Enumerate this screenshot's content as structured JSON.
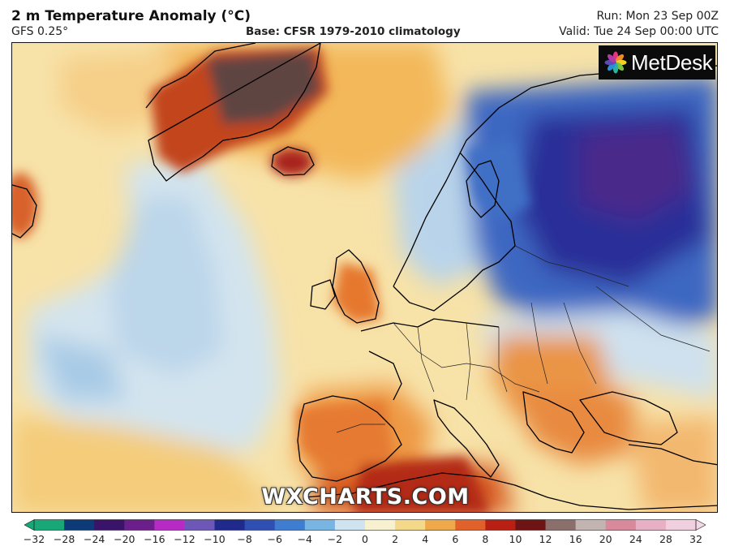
{
  "header": {
    "title": "2 m Temperature Anomaly (°C)",
    "subtitle": "GFS 0.25°",
    "base": "Base: CFSR 1979-2010 climatology",
    "run": "Run: Mon 23 Sep 00Z",
    "valid": "Valid: Tue 24 Sep 00:00 UTC"
  },
  "logo": {
    "text": "MetDesk",
    "icon": "flower-logo-icon"
  },
  "watermark": "WXCHARTS.COM",
  "colorbar": {
    "ticks": [
      "−32",
      "−28",
      "−24",
      "−20",
      "−16",
      "−12",
      "−10",
      "−8",
      "−6",
      "−4",
      "−2",
      "0",
      "2",
      "4",
      "6",
      "8",
      "10",
      "12",
      "16",
      "20",
      "24",
      "28",
      "32"
    ],
    "colors": [
      "#18a878",
      "#0d3a78",
      "#3a1468",
      "#6a1f8a",
      "#b52bc4",
      "#6d58b8",
      "#1f2a8c",
      "#2f4fb3",
      "#3f7dd0",
      "#79b5e3",
      "#cfe3f0",
      "#f7f1cf",
      "#f5d98b",
      "#efa94a",
      "#e0622a",
      "#b82014",
      "#6e1414",
      "#8a6f6a",
      "#c2b4b0",
      "#d88a9a",
      "#e8b0c4",
      "#f0d0de"
    ]
  },
  "map": {
    "region": "North Atlantic and Europe",
    "colors": {
      "warm": "#f0a040",
      "hot": "#c63a18",
      "very_hot": "#5a3a38",
      "neutral": "#f7e2a8",
      "cool": "#bfd9ec",
      "cold": "#3f6ec8",
      "very_cold": "#2c2a96",
      "coast": "#000000"
    }
  }
}
